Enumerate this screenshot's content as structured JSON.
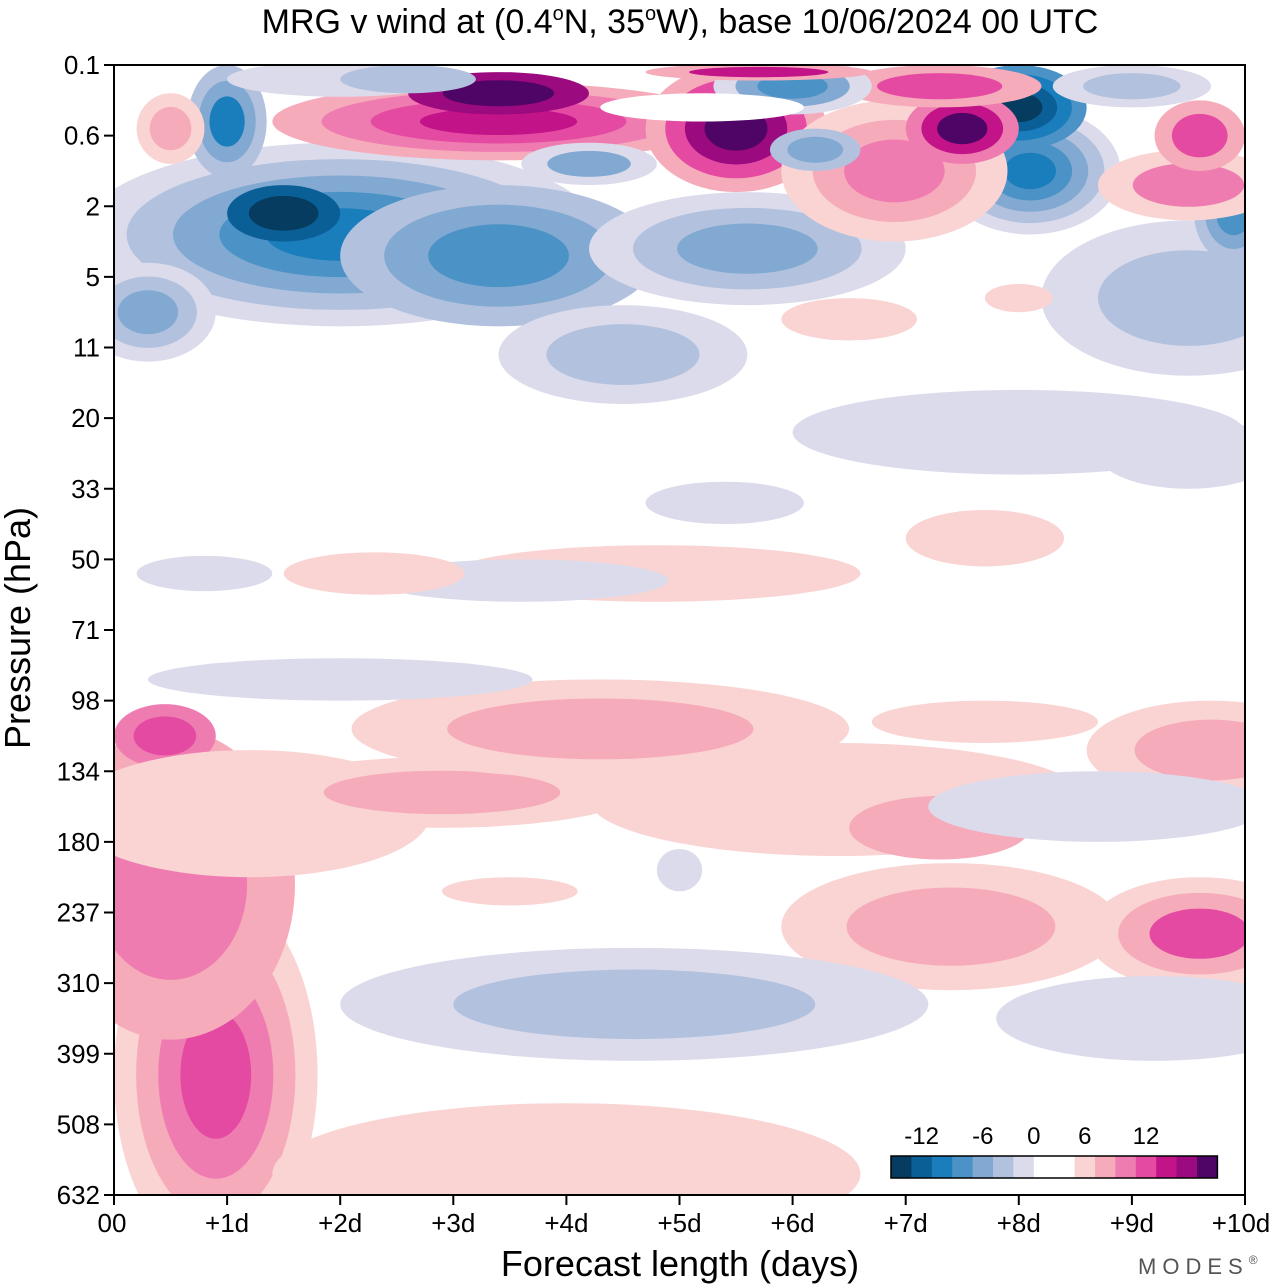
{
  "chart_data": {
    "type": "heatmap",
    "title": "MRG v wind at (0.4°N, 35°W),  base 10/06/2024  00 UTC",
    "title_parts": [
      "MRG v wind at (0.4",
      "o",
      "N, 35",
      "o",
      "W),  base 10/06/2024  00 UTC"
    ],
    "xlabel": "Forecast length (days)",
    "ylabel": "Pressure (hPa)",
    "x_ticks": [
      "00",
      "+1d",
      "+2d",
      "+3d",
      "+4d",
      "+5d",
      "+6d",
      "+7d",
      "+8d",
      "+9d",
      "+10d"
    ],
    "y_ticks": [
      "0.1",
      "0.6",
      "2",
      "5",
      "11",
      "20",
      "33",
      "50",
      "71",
      "98",
      "134",
      "180",
      "237",
      "310",
      "399",
      "508",
      "632"
    ],
    "xlim": [
      0,
      10
    ],
    "y_scale": "categorical pressure levels (top 0.1 hPa to bottom 632 hPa)",
    "grid": false,
    "colorbar": {
      "labels": [
        {
          "text": "-12",
          "at": 1.5
        },
        {
          "text": "-6",
          "at": 4.5
        },
        {
          "text": "0",
          "at": 7
        },
        {
          "text": "6",
          "at": 9.5
        },
        {
          "text": "12",
          "at": 12.5
        }
      ],
      "colors": [
        "#053c60",
        "#0b5f97",
        "#1a7dbc",
        "#4b92c6",
        "#81a9d1",
        "#b2c2de",
        "#dcdbeb",
        "#ffffff",
        "#ffffff",
        "#f9d4d3",
        "#f6abbb",
        "#ef7cb1",
        "#e54aa2",
        "#c21388",
        "#9c0a7f",
        "#4f0566"
      ]
    },
    "blobs": [
      {
        "x": 0.9,
        "y": 14.3,
        "rx": 0.9,
        "ry": 2.6,
        "levels": [
          "#f9d4d3",
          "#f6abbb",
          "#ef7cb1",
          "#e54aa2"
        ]
      },
      {
        "x": 0.5,
        "y": 11.6,
        "rx": 1.1,
        "ry": 2.2,
        "levels": [
          "#f6abbb",
          "#ef7cb1"
        ]
      },
      {
        "x": 0.45,
        "y": 9.5,
        "rx": 0.45,
        "ry": 0.45,
        "levels": [
          "#ef7cb1",
          "#e54aa2"
        ]
      },
      {
        "x": 1.2,
        "y": 10.6,
        "rx": 1.6,
        "ry": 0.9,
        "levels": [
          "#f9d4d3"
        ]
      },
      {
        "x": 2.9,
        "y": 10.3,
        "rx": 1.7,
        "ry": 0.5,
        "levels": [
          "#f9d4d3",
          "#f6abbb"
        ]
      },
      {
        "x": 4.3,
        "y": 9.4,
        "rx": 2.2,
        "ry": 0.7,
        "levels": [
          "#f9d4d3",
          "#f6abbb"
        ]
      },
      {
        "x": 6.4,
        "y": 10.4,
        "rx": 2.2,
        "ry": 0.8,
        "levels": [
          "#f9d4d3"
        ]
      },
      {
        "x": 7.4,
        "y": 12.2,
        "rx": 1.5,
        "ry": 0.9,
        "levels": [
          "#f9d4d3",
          "#f6abbb"
        ]
      },
      {
        "x": 7.3,
        "y": 10.8,
        "rx": 0.8,
        "ry": 0.45,
        "levels": [
          "#f6abbb"
        ]
      },
      {
        "x": 9.6,
        "y": 12.3,
        "rx": 1.0,
        "ry": 0.8,
        "levels": [
          "#f9d4d3",
          "#f6abbb",
          "#e54aa2"
        ]
      },
      {
        "x": 9.7,
        "y": 9.7,
        "rx": 1.1,
        "ry": 0.7,
        "levels": [
          "#f9d4d3",
          "#f6abbb"
        ]
      },
      {
        "x": 7.7,
        "y": 9.3,
        "rx": 1.0,
        "ry": 0.3,
        "levels": [
          "#f9d4d3"
        ]
      },
      {
        "x": 4.0,
        "y": 15.7,
        "rx": 2.6,
        "ry": 1.0,
        "levels": [
          "#f9d4d3"
        ]
      },
      {
        "x": 3.5,
        "y": 11.7,
        "rx": 0.6,
        "ry": 0.2,
        "levels": [
          "#f9d4d3"
        ]
      },
      {
        "x": 4.6,
        "y": 13.3,
        "rx": 2.6,
        "ry": 0.8,
        "levels": [
          "#dcdbeb",
          "#b2c2de"
        ]
      },
      {
        "x": 9.2,
        "y": 13.5,
        "rx": 1.4,
        "ry": 0.6,
        "levels": [
          "#dcdbeb"
        ]
      },
      {
        "x": 8.7,
        "y": 10.5,
        "rx": 1.5,
        "ry": 0.5,
        "levels": [
          "#dcdbeb"
        ]
      },
      {
        "x": 2.0,
        "y": 8.7,
        "rx": 1.7,
        "ry": 0.3,
        "levels": [
          "#dcdbeb"
        ]
      },
      {
        "x": 5.0,
        "y": 11.4,
        "rx": 0.2,
        "ry": 0.3,
        "levels": [
          "#dcdbeb"
        ]
      },
      {
        "x": 4.8,
        "y": 7.2,
        "rx": 1.8,
        "ry": 0.4,
        "levels": [
          "#f9d4d3"
        ]
      },
      {
        "x": 3.6,
        "y": 7.3,
        "rx": 1.3,
        "ry": 0.3,
        "levels": [
          "#dcdbeb"
        ]
      },
      {
        "x": 7.7,
        "y": 6.7,
        "rx": 0.7,
        "ry": 0.4,
        "levels": [
          "#f9d4d3"
        ]
      },
      {
        "x": 5.4,
        "y": 6.2,
        "rx": 0.7,
        "ry": 0.3,
        "levels": [
          "#dcdbeb"
        ]
      },
      {
        "x": 8.0,
        "y": 5.2,
        "rx": 2.0,
        "ry": 0.6,
        "levels": [
          "#dcdbeb"
        ]
      },
      {
        "x": 2.3,
        "y": 7.2,
        "rx": 0.8,
        "ry": 0.3,
        "levels": [
          "#f9d4d3"
        ]
      },
      {
        "x": 0.8,
        "y": 7.2,
        "rx": 0.6,
        "ry": 0.25,
        "levels": [
          "#dcdbeb"
        ]
      },
      {
        "x": 2.0,
        "y": 2.4,
        "rx": 2.3,
        "ry": 1.3,
        "levels": [
          "#dcdbeb",
          "#b2c2de",
          "#81a9d1",
          "#4b92c6",
          "#1a7dbc"
        ]
      },
      {
        "x": 1.5,
        "y": 2.1,
        "rx": 0.5,
        "ry": 0.4,
        "levels": [
          "#0b5f97",
          "#053c60"
        ]
      },
      {
        "x": 3.4,
        "y": 2.7,
        "rx": 1.4,
        "ry": 1.0,
        "levels": [
          "#b2c2de",
          "#81a9d1",
          "#4b92c6"
        ]
      },
      {
        "x": 5.6,
        "y": 2.6,
        "rx": 1.4,
        "ry": 0.8,
        "levels": [
          "#dcdbeb",
          "#b2c2de",
          "#81a9d1"
        ]
      },
      {
        "x": 0.3,
        "y": 3.5,
        "rx": 0.6,
        "ry": 0.7,
        "levels": [
          "#dcdbeb",
          "#b2c2de",
          "#81a9d1"
        ]
      },
      {
        "x": 8.1,
        "y": 1.5,
        "rx": 0.8,
        "ry": 0.9,
        "levels": [
          "#dcdbeb",
          "#b2c2de",
          "#81a9d1",
          "#4b92c6",
          "#1a7dbc"
        ]
      },
      {
        "x": 8.0,
        "y": 0.6,
        "rx": 0.6,
        "ry": 0.6,
        "levels": [
          "#4b92c6",
          "#1a7dbc",
          "#0b5f97",
          "#053c60"
        ]
      },
      {
        "x": 9.5,
        "y": 3.3,
        "rx": 1.3,
        "ry": 1.1,
        "levels": [
          "#dcdbeb",
          "#b2c2de"
        ]
      },
      {
        "x": 9.9,
        "y": 2.1,
        "rx": 0.35,
        "ry": 0.7,
        "levels": [
          "#b2c2de",
          "#81a9d1",
          "#4b92c6"
        ]
      },
      {
        "x": 1.0,
        "y": 0.8,
        "rx": 0.35,
        "ry": 0.8,
        "levels": [
          "#b2c2de",
          "#81a9d1",
          "#1a7dbc"
        ]
      },
      {
        "x": 3.4,
        "y": 0.8,
        "rx": 2.0,
        "ry": 0.55,
        "levels": [
          "#f6abbb",
          "#ef7cb1",
          "#e54aa2",
          "#c21388"
        ]
      },
      {
        "x": 3.4,
        "y": 0.4,
        "rx": 0.8,
        "ry": 0.3,
        "levels": [
          "#9c0a7f",
          "#4f0566"
        ]
      },
      {
        "x": 5.5,
        "y": 0.9,
        "rx": 0.8,
        "ry": 0.9,
        "levels": [
          "#f6abbb",
          "#e54aa2",
          "#9c0a7f",
          "#4f0566"
        ]
      },
      {
        "x": 6.9,
        "y": 1.5,
        "rx": 1.0,
        "ry": 1.0,
        "levels": [
          "#f9d4d3",
          "#f6abbb",
          "#ef7cb1"
        ]
      },
      {
        "x": 7.5,
        "y": 0.9,
        "rx": 0.5,
        "ry": 0.5,
        "levels": [
          "#ef7cb1",
          "#c21388",
          "#4f0566"
        ]
      },
      {
        "x": 7.3,
        "y": 0.3,
        "rx": 0.9,
        "ry": 0.3,
        "levels": [
          "#f6abbb",
          "#e54aa2"
        ]
      },
      {
        "x": 9.5,
        "y": 1.7,
        "rx": 0.8,
        "ry": 0.5,
        "levels": [
          "#f9d4d3",
          "#ef7cb1"
        ]
      },
      {
        "x": 9.6,
        "y": 1.0,
        "rx": 0.4,
        "ry": 0.5,
        "levels": [
          "#f6abbb",
          "#e54aa2"
        ]
      },
      {
        "x": 0.5,
        "y": 0.9,
        "rx": 0.3,
        "ry": 0.5,
        "levels": [
          "#f9d4d3",
          "#f6abbb"
        ]
      },
      {
        "x": 6.0,
        "y": 0.3,
        "rx": 0.7,
        "ry": 0.4,
        "levels": [
          "#dcdbeb",
          "#81a9d1",
          "#4b92c6"
        ]
      },
      {
        "x": 4.2,
        "y": 1.4,
        "rx": 0.6,
        "ry": 0.3,
        "levels": [
          "#dcdbeb",
          "#81a9d1"
        ]
      },
      {
        "x": 6.2,
        "y": 1.2,
        "rx": 0.4,
        "ry": 0.3,
        "levels": [
          "#b2c2de",
          "#81a9d1"
        ]
      },
      {
        "x": 2.0,
        "y": 0.2,
        "rx": 1.0,
        "ry": 0.25,
        "levels": [
          "#dcdbeb"
        ]
      },
      {
        "x": 2.6,
        "y": 0.2,
        "rx": 0.6,
        "ry": 0.2,
        "levels": [
          "#b2c2de"
        ]
      },
      {
        "x": 9.0,
        "y": 0.3,
        "rx": 0.7,
        "ry": 0.3,
        "levels": [
          "#dcdbeb",
          "#b2c2de"
        ]
      },
      {
        "x": 5.7,
        "y": 0.1,
        "rx": 1.0,
        "ry": 0.12,
        "levels": [
          "#f6abbb",
          "#c21388"
        ]
      },
      {
        "x": 4.5,
        "y": 4.1,
        "rx": 1.1,
        "ry": 0.7,
        "levels": [
          "#dcdbeb",
          "#b2c2de"
        ]
      },
      {
        "x": 6.5,
        "y": 3.6,
        "rx": 0.6,
        "ry": 0.3,
        "levels": [
          "#f9d4d3"
        ]
      },
      {
        "x": 8.0,
        "y": 3.3,
        "rx": 0.3,
        "ry": 0.2,
        "levels": [
          "#f9d4d3"
        ]
      },
      {
        "x": 9.5,
        "y": 5.5,
        "rx": 0.8,
        "ry": 0.5,
        "levels": [
          "#dcdbeb"
        ]
      },
      {
        "x": 5.2,
        "y": 0.6,
        "rx": 0.9,
        "ry": 0.2,
        "levels": [
          "#ffffff"
        ]
      }
    ]
  },
  "branding": {
    "text": "MODES",
    "mark": "®"
  }
}
